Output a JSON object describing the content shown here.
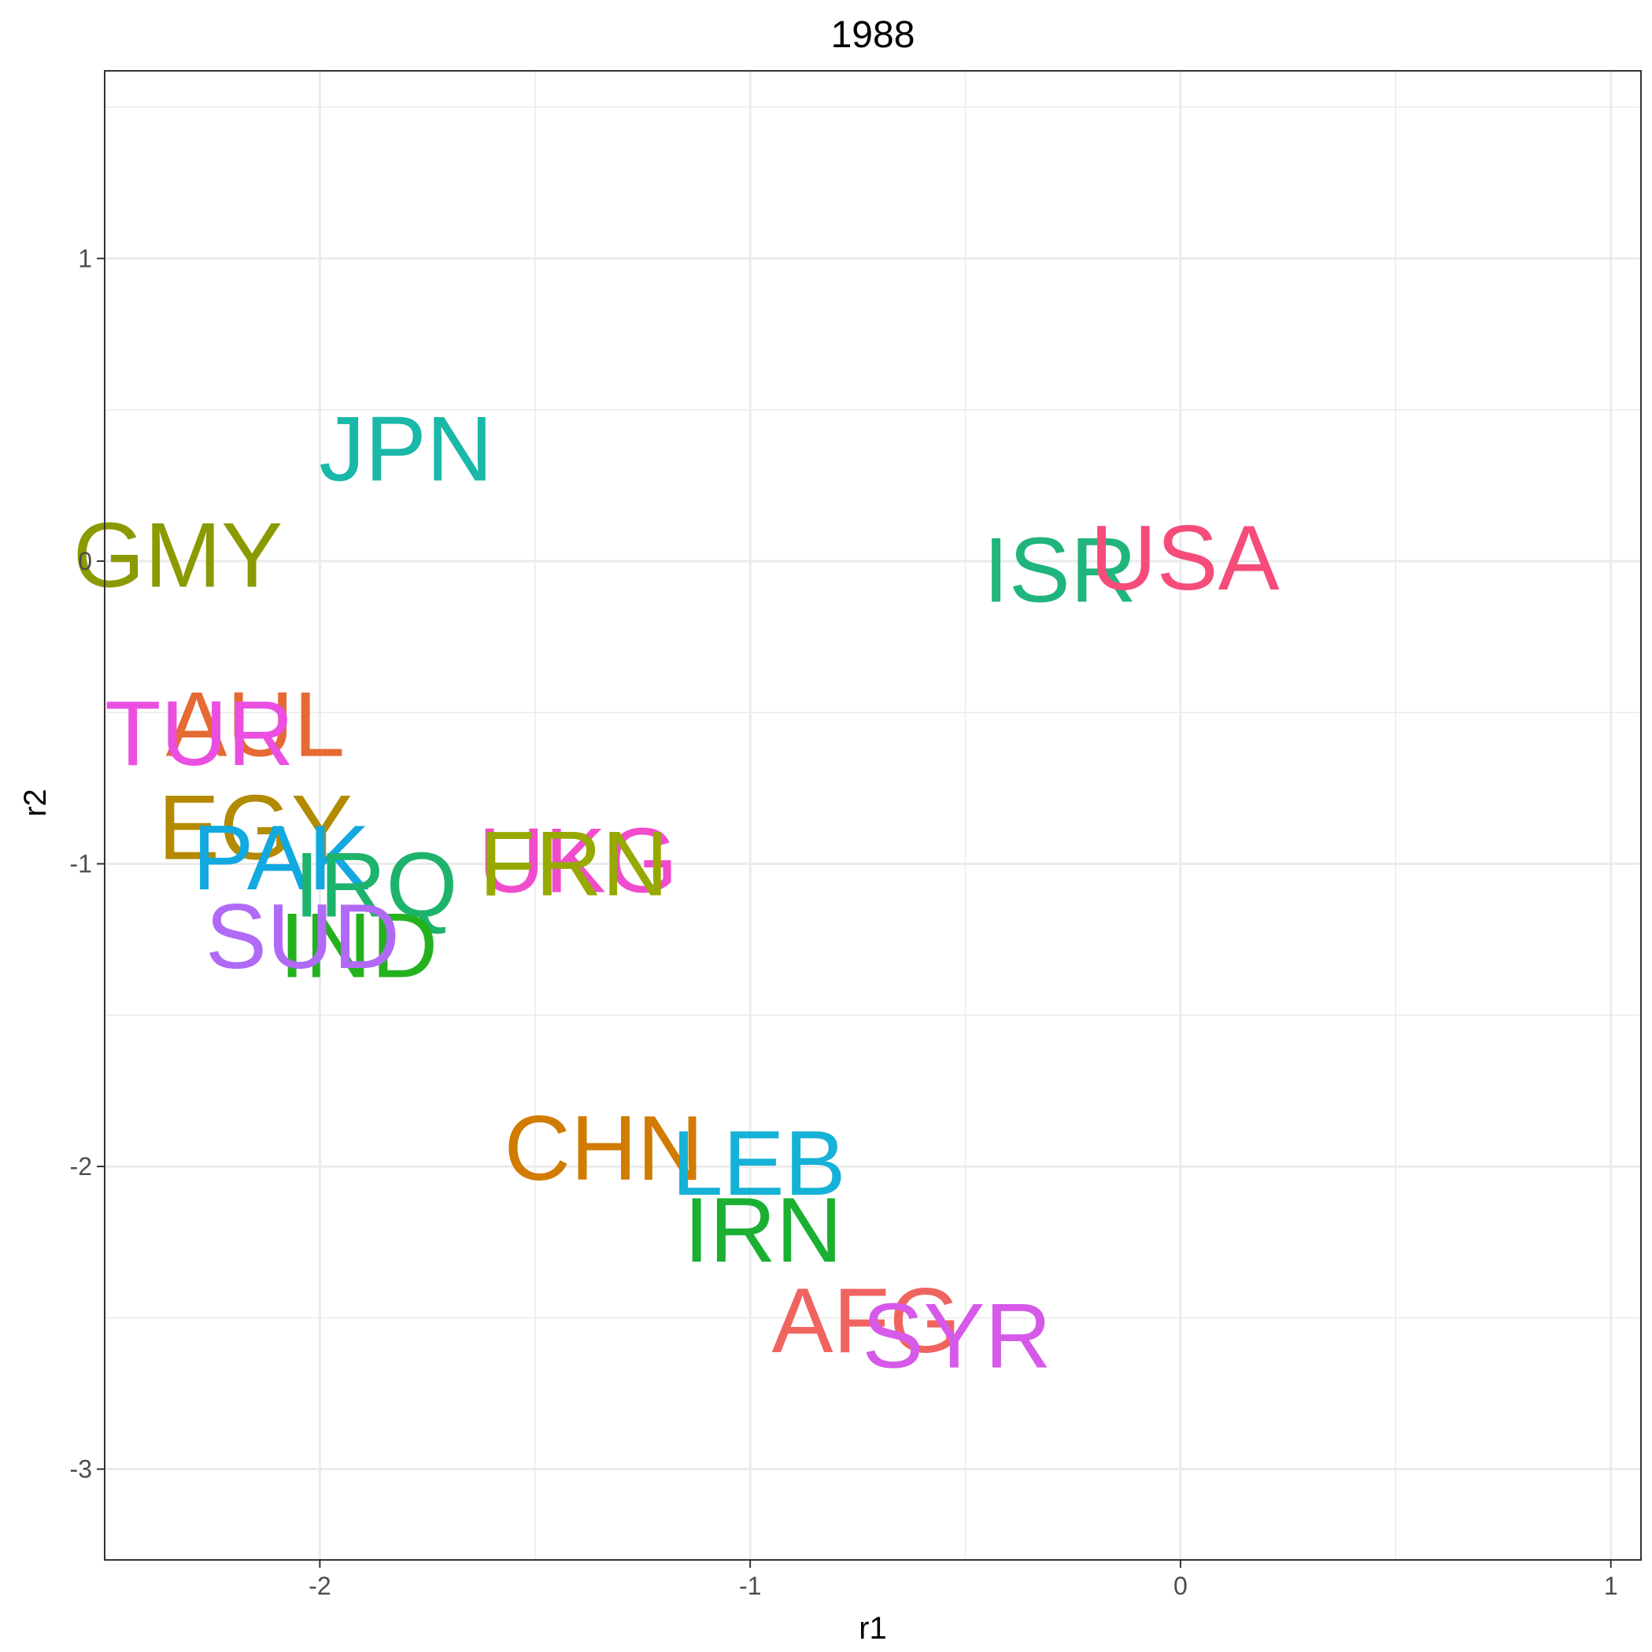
{
  "chart_data": {
    "type": "scatter",
    "title": "1988",
    "xlabel": "r1",
    "ylabel": "r2",
    "xlim": [
      -2.5,
      1.07
    ],
    "ylim": [
      -3.3,
      1.62
    ],
    "x_ticks": [
      -2,
      -1,
      0,
      1
    ],
    "y_ticks": [
      1,
      0,
      -1,
      -2,
      -3
    ],
    "x_tick_labels": [
      "-2",
      "-1",
      "0",
      "1"
    ],
    "y_tick_labels": [
      "1",
      "0",
      "-1",
      "-2",
      "-3"
    ],
    "grid": true,
    "points": [
      {
        "label": "JPN",
        "x": -1.8,
        "y": 0.37,
        "color": "#19B8A8"
      },
      {
        "label": "GMY",
        "x": -2.33,
        "y": 0.02,
        "color": "#8B9A00"
      },
      {
        "label": "ISR",
        "x": -0.28,
        "y": -0.03,
        "color": "#1FB57C"
      },
      {
        "label": "USA",
        "x": 0.01,
        "y": 0.01,
        "color": "#F54C7A"
      },
      {
        "label": "AUL",
        "x": -2.15,
        "y": -0.54,
        "color": "#E66A33"
      },
      {
        "label": "TUR",
        "x": -2.28,
        "y": -0.57,
        "color": "#EA4FE2"
      },
      {
        "label": "EGY",
        "x": -2.15,
        "y": -0.88,
        "color": "#B38A00"
      },
      {
        "label": "PAK",
        "x": -2.09,
        "y": -0.98,
        "color": "#12A8E0"
      },
      {
        "label": "IRQ",
        "x": -1.87,
        "y": -1.07,
        "color": "#1DB36C"
      },
      {
        "label": "UKG",
        "x": -1.4,
        "y": -0.99,
        "color": "#F04CCB"
      },
      {
        "label": "FRN",
        "x": -1.41,
        "y": -1.0,
        "color": "#97A900"
      },
      {
        "label": "IND",
        "x": -1.91,
        "y": -1.27,
        "color": "#24B11E"
      },
      {
        "label": "SUD",
        "x": -2.04,
        "y": -1.24,
        "color": "#B06AF6"
      },
      {
        "label": "CHN",
        "x": -1.34,
        "y": -1.94,
        "color": "#D17B00"
      },
      {
        "label": "LEB",
        "x": -0.98,
        "y": -1.99,
        "color": "#16B1D6"
      },
      {
        "label": "IRN",
        "x": -0.97,
        "y": -2.21,
        "color": "#1AB032"
      },
      {
        "label": "AFG",
        "x": -0.73,
        "y": -2.51,
        "color": "#F06460"
      },
      {
        "label": "SYR",
        "x": -0.52,
        "y": -2.56,
        "color": "#D659EA"
      }
    ]
  }
}
